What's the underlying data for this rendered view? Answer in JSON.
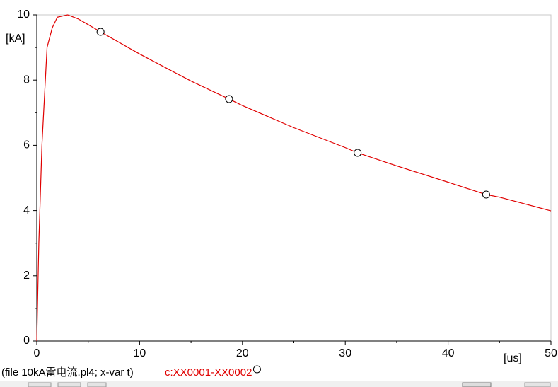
{
  "chart_data": {
    "type": "line",
    "y_label": "[kA]",
    "x_label": "[us]",
    "caption": "(file 10kA雷电流.pl4; x-var t)",
    "x": [
      0,
      0.2,
      0.5,
      1,
      1.5,
      2,
      3,
      4,
      5,
      6.2,
      10,
      15,
      18.7,
      20,
      25,
      30,
      31.2,
      35,
      40,
      43.7,
      45,
      50
    ],
    "series": [
      {
        "name": "c:XX0001-XX0002",
        "color": "#e00000",
        "values": [
          0,
          3,
          6,
          9.0,
          9.6,
          9.93,
          10,
          9.88,
          9.7,
          9.48,
          8.8,
          7.97,
          7.42,
          7.22,
          6.54,
          5.93,
          5.77,
          5.37,
          4.87,
          4.49,
          4.41,
          3.99
        ],
        "markers": [
          9,
          12,
          16,
          19
        ]
      }
    ],
    "xlim": [
      0,
      50
    ],
    "xticks": [
      0,
      10,
      20,
      30,
      40,
      50
    ],
    "xminorticks": [
      5,
      15,
      25,
      35,
      45
    ],
    "ylim": [
      0,
      10
    ],
    "yticks": [
      0,
      2,
      4,
      6,
      8,
      10
    ],
    "yminorticks": [
      1,
      3,
      5,
      7,
      9
    ]
  }
}
